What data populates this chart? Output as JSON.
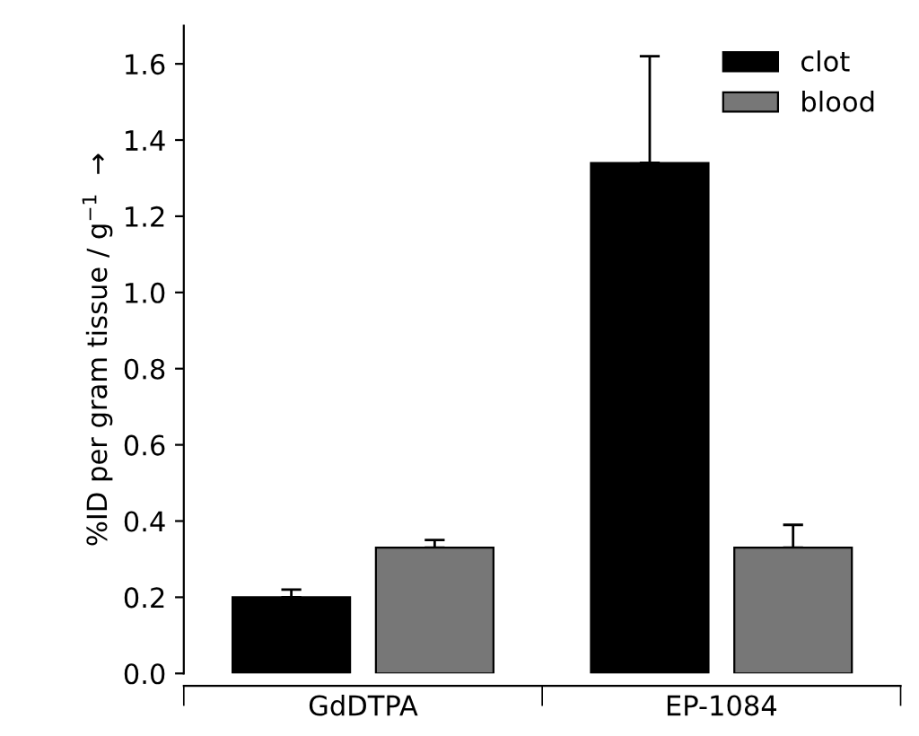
{
  "chart_data": {
    "type": "bar",
    "ylabel": "%ID per gram tissue / g$^{−1}$  →",
    "categories": [
      "GdDTPA",
      "EP-1084"
    ],
    "series": [
      {
        "name": "clot",
        "color": "#000000",
        "values": [
          0.2,
          1.34
        ],
        "errors": [
          [
            0.2,
            0.22
          ],
          [
            1.34,
            1.62
          ]
        ]
      },
      {
        "name": "blood",
        "color": "#777777",
        "values": [
          0.33,
          0.33
        ],
        "errors": [
          [
            0.33,
            0.35
          ],
          [
            0.33,
            0.39
          ]
        ]
      }
    ],
    "ylim": [
      0,
      1.7
    ],
    "yticks": [
      {
        "value": 0,
        "label": "0.0"
      },
      0.2,
      0.4,
      0.6,
      0.8,
      {
        "value": 1,
        "label": "1.0"
      },
      1.2,
      1.4,
      1.6
    ],
    "legend": "top right",
    "grid": false
  }
}
